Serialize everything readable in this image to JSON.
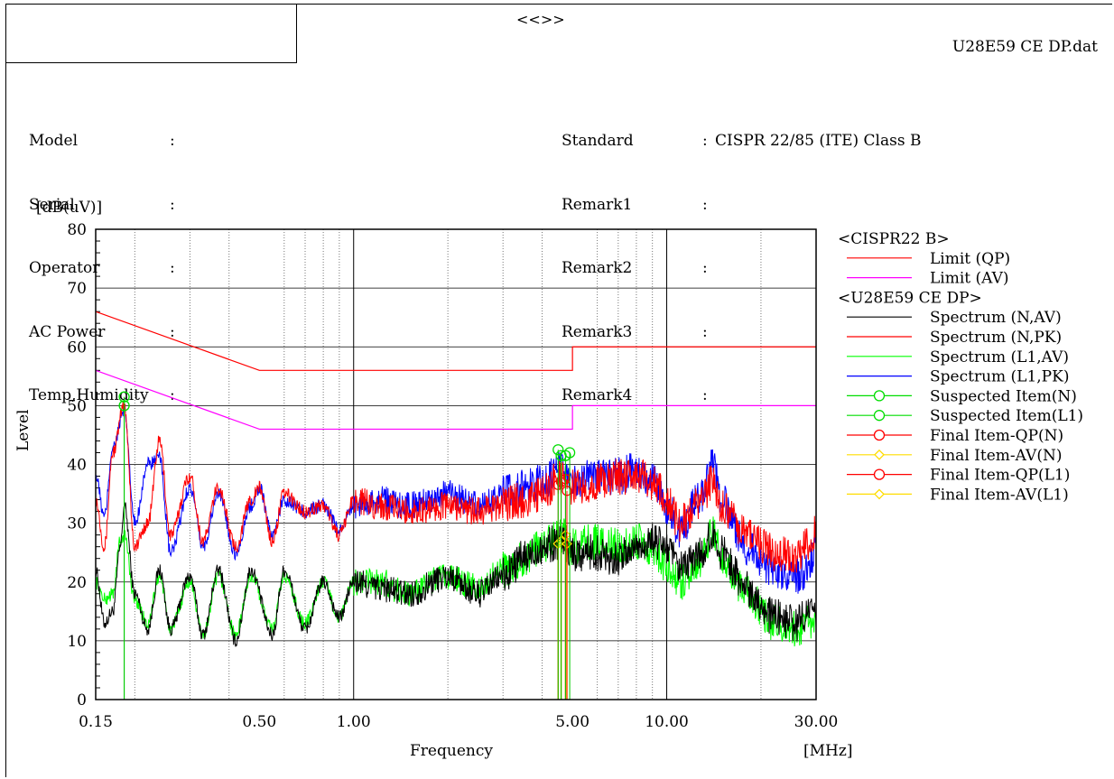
{
  "header": {
    "arrows": "<<>>",
    "filename": "U28E59 CE DP.dat"
  },
  "info_left": [
    {
      "key": "Model",
      "value": ""
    },
    {
      "key": "Serial",
      "value": ""
    },
    {
      "key": "Operator",
      "value": ""
    },
    {
      "key": "AC Power",
      "value": ""
    },
    {
      "key": "Temp,Humidity",
      "value": ""
    }
  ],
  "info_right": [
    {
      "key": "Standard",
      "value": "CISPR 22/85 (ITE) Class B"
    },
    {
      "key": "Remark1",
      "value": ""
    },
    {
      "key": "Remark2",
      "value": ""
    },
    {
      "key": "Remark3",
      "value": ""
    },
    {
      "key": "Remark4",
      "value": ""
    }
  ],
  "chart_data": {
    "type": "line",
    "ylabel": "Level",
    "yunit": "[dB(uV)]",
    "xlabel": "Frequency",
    "xunit": "[MHz]",
    "xscale": "log",
    "xlim": [
      0.15,
      30
    ],
    "ylim": [
      0,
      80
    ],
    "xticks": [
      {
        "value": 0.15,
        "label": "0.15"
      },
      {
        "value": 0.5,
        "label": "0.50"
      },
      {
        "value": 1,
        "label": "1.00"
      },
      {
        "value": 5,
        "label": "5.00"
      },
      {
        "value": 10,
        "label": "10.00"
      },
      {
        "value": 30,
        "label": "30.00"
      }
    ],
    "yticks": [
      0,
      10,
      20,
      30,
      40,
      50,
      60,
      70,
      80
    ],
    "legend": [
      {
        "label": "<CISPR22 B>",
        "kind": "header"
      },
      {
        "label": "Limit (QP)",
        "kind": "line",
        "color": "#ff0000"
      },
      {
        "label": "Limit (AV)",
        "kind": "line",
        "color": "#ff00ff"
      },
      {
        "label": "<U28E59 CE DP>",
        "kind": "header"
      },
      {
        "label": "Spectrum (N,AV)",
        "kind": "line",
        "color": "#000000"
      },
      {
        "label": "Spectrum (N,PK)",
        "kind": "line",
        "color": "#ff0000"
      },
      {
        "label": "Spectrum (L1,AV)",
        "kind": "line",
        "color": "#00ff00"
      },
      {
        "label": "Spectrum (L1,PK)",
        "kind": "line",
        "color": "#0000ff"
      },
      {
        "label": "Suspected Item(N)",
        "kind": "circle",
        "color": "#00dd00"
      },
      {
        "label": "Suspected Item(L1)",
        "kind": "circle",
        "color": "#00dd00"
      },
      {
        "label": "Final Item-QP(N)",
        "kind": "circle",
        "color": "#ff0000"
      },
      {
        "label": "Final Item-AV(N)",
        "kind": "diamond",
        "color": "#ffdd00"
      },
      {
        "label": "Final Item-QP(L1)",
        "kind": "circle",
        "color": "#ff0000"
      },
      {
        "label": "Final Item-AV(L1)",
        "kind": "diamond",
        "color": "#ffdd00"
      }
    ],
    "limits": [
      {
        "name": "Limit (QP)",
        "color": "#ff0000",
        "points": [
          [
            0.15,
            66
          ],
          [
            0.5,
            56
          ],
          [
            5,
            56
          ],
          [
            5,
            60
          ],
          [
            30,
            60
          ]
        ]
      },
      {
        "name": "Limit (AV)",
        "color": "#ff00ff",
        "points": [
          [
            0.15,
            56
          ],
          [
            0.5,
            46
          ],
          [
            5,
            46
          ],
          [
            5,
            50
          ],
          [
            30,
            50
          ]
        ]
      }
    ],
    "series": [
      {
        "name": "Spectrum (N,AV)",
        "color": "#000000",
        "points": [
          [
            0.15,
            22
          ],
          [
            0.16,
            13
          ],
          [
            0.17,
            15
          ],
          [
            0.18,
            26
          ],
          [
            0.185,
            33
          ],
          [
            0.2,
            18
          ],
          [
            0.22,
            12
          ],
          [
            0.24,
            22
          ],
          [
            0.26,
            12
          ],
          [
            0.3,
            21
          ],
          [
            0.33,
            11
          ],
          [
            0.37,
            22
          ],
          [
            0.42,
            10
          ],
          [
            0.47,
            22
          ],
          [
            0.55,
            11
          ],
          [
            0.6,
            22
          ],
          [
            0.7,
            12
          ],
          [
            0.8,
            20
          ],
          [
            0.9,
            14
          ],
          [
            1.0,
            20
          ],
          [
            1.2,
            19
          ],
          [
            1.5,
            18
          ],
          [
            2.0,
            21
          ],
          [
            2.5,
            18
          ],
          [
            3.0,
            21
          ],
          [
            3.5,
            24
          ],
          [
            4.0,
            26
          ],
          [
            4.6,
            27
          ],
          [
            5.0,
            25
          ],
          [
            6.0,
            25
          ],
          [
            7.0,
            24
          ],
          [
            8.0,
            26
          ],
          [
            9.0,
            27
          ],
          [
            10.0,
            26
          ],
          [
            11.0,
            22
          ],
          [
            13.0,
            25
          ],
          [
            14.0,
            28
          ],
          [
            15.0,
            25
          ],
          [
            18.0,
            19
          ],
          [
            22.0,
            14
          ],
          [
            26.0,
            13
          ],
          [
            28.0,
            15
          ],
          [
            30.0,
            14
          ]
        ]
      },
      {
        "name": "Spectrum (N,PK)",
        "color": "#ff0000",
        "points": [
          [
            0.15,
            34
          ],
          [
            0.16,
            26
          ],
          [
            0.17,
            42
          ],
          [
            0.185,
            50
          ],
          [
            0.2,
            26
          ],
          [
            0.22,
            30
          ],
          [
            0.24,
            44
          ],
          [
            0.26,
            28
          ],
          [
            0.3,
            38
          ],
          [
            0.33,
            27
          ],
          [
            0.37,
            36
          ],
          [
            0.42,
            26
          ],
          [
            0.47,
            34
          ],
          [
            0.5,
            36
          ],
          [
            0.55,
            27
          ],
          [
            0.6,
            35
          ],
          [
            0.7,
            32
          ],
          [
            0.8,
            33
          ],
          [
            0.9,
            28
          ],
          [
            1.0,
            34
          ],
          [
            1.2,
            33
          ],
          [
            1.5,
            32
          ],
          [
            2.0,
            33
          ],
          [
            2.5,
            32
          ],
          [
            3.0,
            33
          ],
          [
            3.5,
            34
          ],
          [
            4.0,
            35
          ],
          [
            4.6,
            38
          ],
          [
            5.0,
            36
          ],
          [
            6.0,
            37
          ],
          [
            7.0,
            38
          ],
          [
            8.0,
            38
          ],
          [
            9.0,
            37
          ],
          [
            10.0,
            34
          ],
          [
            11.0,
            30
          ],
          [
            13.0,
            34
          ],
          [
            14.0,
            37
          ],
          [
            15.0,
            33
          ],
          [
            18.0,
            28
          ],
          [
            22.0,
            25
          ],
          [
            26.0,
            24
          ],
          [
            28.0,
            26
          ],
          [
            30.0,
            29
          ]
        ]
      },
      {
        "name": "Spectrum (L1,AV)",
        "color": "#00ff00",
        "points": [
          [
            0.15,
            20
          ],
          [
            0.16,
            17
          ],
          [
            0.17,
            18
          ],
          [
            0.18,
            27
          ],
          [
            0.185,
            28
          ],
          [
            0.2,
            17
          ],
          [
            0.22,
            13
          ],
          [
            0.24,
            21
          ],
          [
            0.26,
            12
          ],
          [
            0.3,
            20
          ],
          [
            0.33,
            11
          ],
          [
            0.37,
            21
          ],
          [
            0.42,
            11
          ],
          [
            0.47,
            21
          ],
          [
            0.55,
            12
          ],
          [
            0.6,
            21
          ],
          [
            0.7,
            13
          ],
          [
            0.8,
            20
          ],
          [
            0.9,
            14
          ],
          [
            1.0,
            20
          ],
          [
            1.2,
            20
          ],
          [
            1.5,
            18
          ],
          [
            2.0,
            21
          ],
          [
            2.5,
            19
          ],
          [
            3.0,
            22
          ],
          [
            3.5,
            24
          ],
          [
            4.0,
            26
          ],
          [
            4.6,
            28
          ],
          [
            5.0,
            26
          ],
          [
            6.0,
            27
          ],
          [
            7.0,
            26
          ],
          [
            8.0,
            27
          ],
          [
            9.0,
            26
          ],
          [
            10.0,
            23
          ],
          [
            11.0,
            20
          ],
          [
            13.0,
            24
          ],
          [
            14.0,
            29
          ],
          [
            15.0,
            24
          ],
          [
            18.0,
            18
          ],
          [
            22.0,
            13
          ],
          [
            26.0,
            12
          ],
          [
            28.0,
            13
          ],
          [
            30.0,
            12
          ]
        ]
      },
      {
        "name": "Spectrum (L1,PK)",
        "color": "#0000ff",
        "points": [
          [
            0.15,
            38
          ],
          [
            0.16,
            31
          ],
          [
            0.17,
            43
          ],
          [
            0.185,
            49
          ],
          [
            0.2,
            30
          ],
          [
            0.22,
            40
          ],
          [
            0.24,
            41
          ],
          [
            0.26,
            25
          ],
          [
            0.3,
            36
          ],
          [
            0.33,
            26
          ],
          [
            0.37,
            35
          ],
          [
            0.42,
            25
          ],
          [
            0.47,
            33
          ],
          [
            0.5,
            36
          ],
          [
            0.55,
            28
          ],
          [
            0.6,
            34
          ],
          [
            0.7,
            32
          ],
          [
            0.8,
            33
          ],
          [
            0.9,
            29
          ],
          [
            1.0,
            33
          ],
          [
            1.2,
            34
          ],
          [
            1.5,
            33
          ],
          [
            2.0,
            35
          ],
          [
            2.5,
            33
          ],
          [
            3.0,
            35
          ],
          [
            3.5,
            36
          ],
          [
            4.0,
            37
          ],
          [
            4.6,
            39
          ],
          [
            5.0,
            37
          ],
          [
            6.0,
            38
          ],
          [
            7.0,
            38
          ],
          [
            8.0,
            39
          ],
          [
            9.0,
            37
          ],
          [
            10.0,
            33
          ],
          [
            11.0,
            29
          ],
          [
            13.0,
            35
          ],
          [
            14.0,
            40
          ],
          [
            15.0,
            34
          ],
          [
            18.0,
            26
          ],
          [
            22.0,
            22
          ],
          [
            26.0,
            21
          ],
          [
            28.0,
            22
          ],
          [
            30.0,
            26
          ]
        ]
      }
    ],
    "markers": {
      "suspected": [
        [
          0.185,
          51.5
        ],
        [
          0.185,
          50
        ],
        [
          4.5,
          42.5
        ],
        [
          4.6,
          41.5
        ],
        [
          4.75,
          41.5
        ],
        [
          4.9,
          42
        ]
      ],
      "final_qp": [
        [
          4.5,
          36.5
        ],
        [
          4.6,
          37
        ],
        [
          4.75,
          37.5
        ],
        [
          4.8,
          35.5
        ]
      ],
      "final_av": [
        [
          4.5,
          26.5
        ],
        [
          4.6,
          27
        ],
        [
          4.75,
          28
        ],
        [
          4.8,
          26.5
        ]
      ]
    }
  }
}
